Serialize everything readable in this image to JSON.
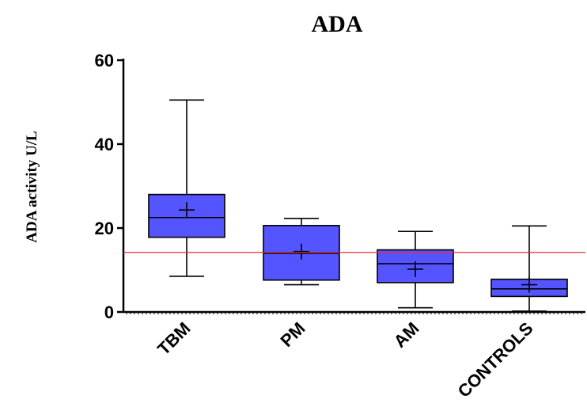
{
  "chart_data": {
    "type": "box",
    "title": "ADA",
    "ylabel": "ADA activity U/L",
    "xlabel": "",
    "ylim": [
      0,
      60
    ],
    "yticks": [
      0,
      20,
      40,
      60
    ],
    "categories": [
      "TBM",
      "PM",
      "AM",
      "CONTROLS"
    ],
    "boxes": [
      {
        "category": "TBM",
        "min": 8.5,
        "q1": 17.8,
        "median": 22.5,
        "q3": 28.0,
        "max": 50.5,
        "mean": 24.3
      },
      {
        "category": "PM",
        "min": 6.5,
        "q1": 7.6,
        "median": 14.0,
        "q3": 20.6,
        "max": 22.3,
        "mean": 14.4
      },
      {
        "category": "AM",
        "min": 1.0,
        "q1": 7.0,
        "median": 11.5,
        "q3": 14.8,
        "max": 19.2,
        "mean": 10.2
      },
      {
        "category": "CONTROLS",
        "min": 0.2,
        "q1": 3.7,
        "median": 5.5,
        "q3": 7.8,
        "max": 20.5,
        "mean": 6.5
      }
    ],
    "reference_line": {
      "y": 14.2,
      "color": "#e03030"
    },
    "box_color": "#5555ff",
    "grid": false
  }
}
